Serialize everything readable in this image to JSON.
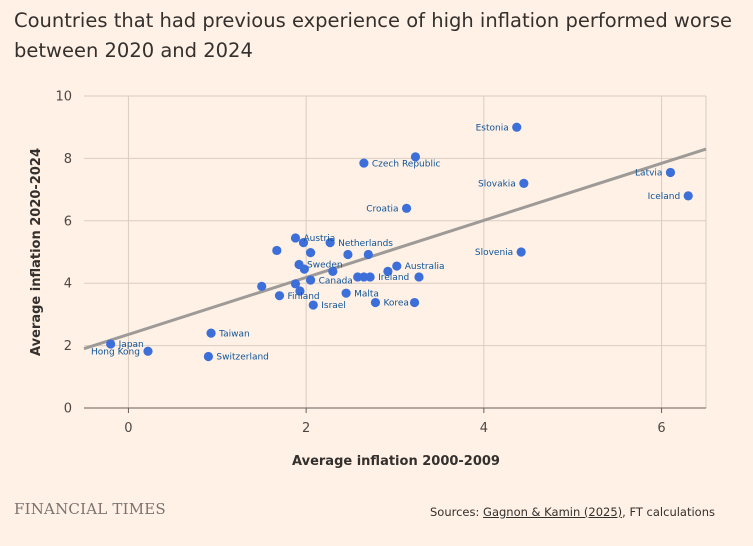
{
  "title": "Countries that had previous experience of high inflation performed worse between 2020 and 2024",
  "footer": {
    "brand": "FINANCIAL TIMES",
    "sources_prefix": "Sources: ",
    "sources_link": "Gagnon & Kamin (2025)",
    "sources_suffix": ", FT calculations"
  },
  "chart_data": {
    "type": "scatter",
    "title": "Countries that had previous experience of high inflation performed worse between 2020 and 2024",
    "xlabel": "Average inflation 2000-2009",
    "ylabel": "Average inflation 2020-2024",
    "xlim": [
      -0.5,
      6.5
    ],
    "ylim": [
      0,
      10
    ],
    "xticks": [
      0,
      2,
      4,
      6
    ],
    "yticks": [
      0,
      2,
      4,
      6,
      8,
      10
    ],
    "grid": true,
    "point_color": "#3C6FD9",
    "trendline_color": "#9E9A97",
    "trendline": {
      "x": [
        -0.5,
        6.5
      ],
      "y": [
        1.9,
        8.3
      ]
    },
    "points": [
      {
        "label": "Estonia",
        "x": 4.37,
        "y": 9.0
      },
      {
        "label": "Czech Republic",
        "x": 2.65,
        "y": 7.85
      },
      {
        "label": "",
        "x": 3.23,
        "y": 8.05
      },
      {
        "label": "Latvia",
        "x": 6.1,
        "y": 7.55
      },
      {
        "label": "Slovakia",
        "x": 4.45,
        "y": 7.2
      },
      {
        "label": "Iceland",
        "x": 6.3,
        "y": 6.8
      },
      {
        "label": "Croatia",
        "x": 3.13,
        "y": 6.4
      },
      {
        "label": "Slovenia",
        "x": 4.42,
        "y": 5.0
      },
      {
        "label": "Austria",
        "x": 1.88,
        "y": 5.45
      },
      {
        "label": "",
        "x": 1.97,
        "y": 5.3
      },
      {
        "label": "Netherlands",
        "x": 2.27,
        "y": 5.3
      },
      {
        "label": "",
        "x": 1.67,
        "y": 5.05
      },
      {
        "label": "",
        "x": 2.05,
        "y": 4.98
      },
      {
        "label": "",
        "x": 2.47,
        "y": 4.92
      },
      {
        "label": "",
        "x": 2.7,
        "y": 4.92
      },
      {
        "label": "Sweden",
        "x": 1.92,
        "y": 4.6
      },
      {
        "label": "",
        "x": 1.98,
        "y": 4.45
      },
      {
        "label": "Australia",
        "x": 3.02,
        "y": 4.55
      },
      {
        "label": "",
        "x": 2.3,
        "y": 4.38
      },
      {
        "label": "",
        "x": 2.92,
        "y": 4.38
      },
      {
        "label": "",
        "x": 2.58,
        "y": 4.2
      },
      {
        "label": "",
        "x": 2.65,
        "y": 4.2
      },
      {
        "label": "Ireland",
        "x": 2.72,
        "y": 4.2
      },
      {
        "label": "",
        "x": 3.27,
        "y": 4.2
      },
      {
        "label": "Canada",
        "x": 2.05,
        "y": 4.1
      },
      {
        "label": "",
        "x": 1.88,
        "y": 3.98
      },
      {
        "label": "",
        "x": 1.5,
        "y": 3.9
      },
      {
        "label": "Malta",
        "x": 2.45,
        "y": 3.68
      },
      {
        "label": "Finland",
        "x": 1.7,
        "y": 3.6
      },
      {
        "label": "",
        "x": 1.93,
        "y": 3.75
      },
      {
        "label": "Korea",
        "x": 2.78,
        "y": 3.38
      },
      {
        "label": "",
        "x": 3.22,
        "y": 3.38
      },
      {
        "label": "Israel",
        "x": 2.08,
        "y": 3.3
      },
      {
        "label": "Taiwan",
        "x": 0.93,
        "y": 2.4
      },
      {
        "label": "Japan",
        "x": -0.2,
        "y": 2.05
      },
      {
        "label": "Hong Kong",
        "x": 0.22,
        "y": 1.82
      },
      {
        "label": "Switzerland",
        "x": 0.9,
        "y": 1.65
      }
    ]
  }
}
